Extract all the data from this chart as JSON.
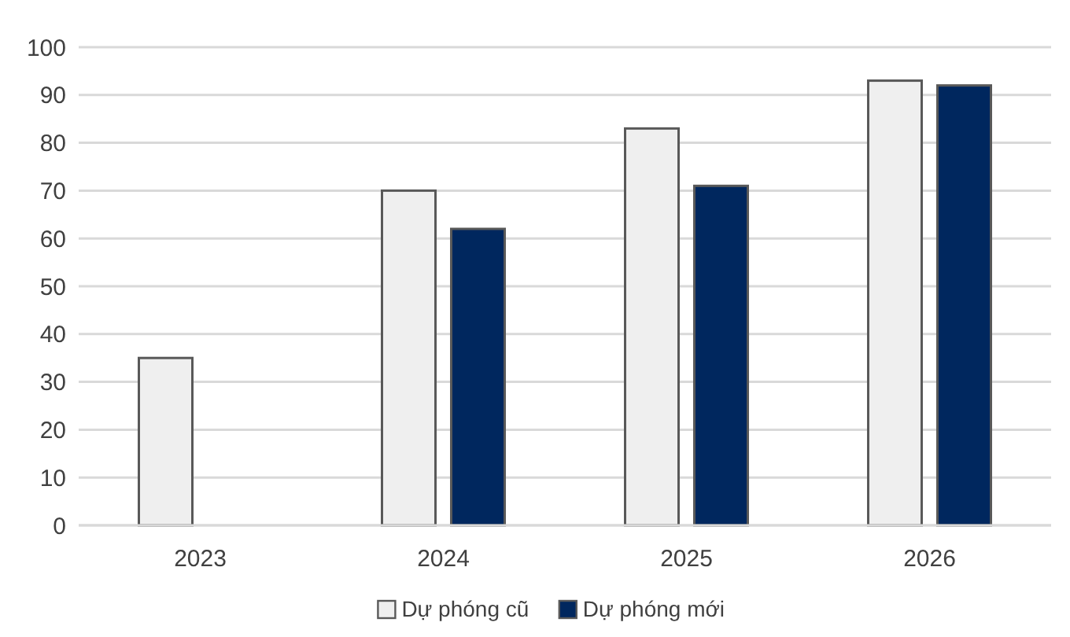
{
  "chart_data": {
    "type": "bar",
    "categories": [
      "2023",
      "2024",
      "2025",
      "2026"
    ],
    "series": [
      {
        "name": "Dự phóng cũ",
        "color": "#efefef",
        "values": [
          35,
          70,
          83,
          93
        ]
      },
      {
        "name": "Dự phóng mới",
        "color": "#00275e",
        "values": [
          null,
          62,
          71,
          92
        ]
      }
    ],
    "ylim": [
      0,
      100
    ],
    "yticks": [
      0,
      10,
      20,
      30,
      40,
      50,
      60,
      70,
      80,
      90,
      100
    ],
    "grid": "y",
    "legend": "bottom"
  }
}
